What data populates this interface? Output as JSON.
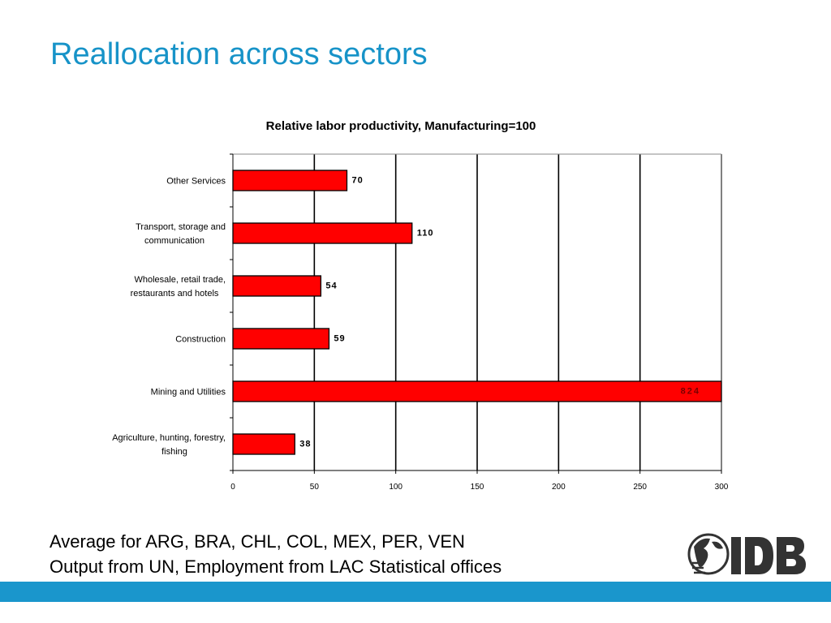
{
  "slide": {
    "title": "Reallocation across sectors",
    "notes": [
      "Average for ARG, BRA, CHL, COL, MEX, PER, VEN",
      "Output from UN, Employment from LAC Statistical offices"
    ],
    "logo_text": "IDB"
  },
  "colors": {
    "title": "#1793c8",
    "bar": "#ff0000",
    "bottom_bar": "#1a96cc"
  },
  "chart_data": {
    "type": "bar",
    "orientation": "horizontal",
    "title": "Relative labor productivity, Manufacturing=100",
    "categories": [
      [
        "Other Services"
      ],
      [
        "Transport, storage and",
        "communication"
      ],
      [
        "Wholesale, retail trade,",
        "restaurants and hotels"
      ],
      [
        "Construction"
      ],
      [
        "Mining and Utilities"
      ],
      [
        "Agriculture, hunting, forestry,",
        "fishing"
      ]
    ],
    "values": [
      70,
      110,
      54,
      59,
      824,
      38
    ],
    "value_labels": [
      "70",
      "110",
      "54",
      "59",
      "824",
      "38"
    ],
    "xlim": [
      0,
      300
    ],
    "xticks": [
      "0",
      "50",
      "100",
      "150",
      "200",
      "250",
      "300"
    ],
    "grid": "vertical",
    "legend": "none"
  }
}
